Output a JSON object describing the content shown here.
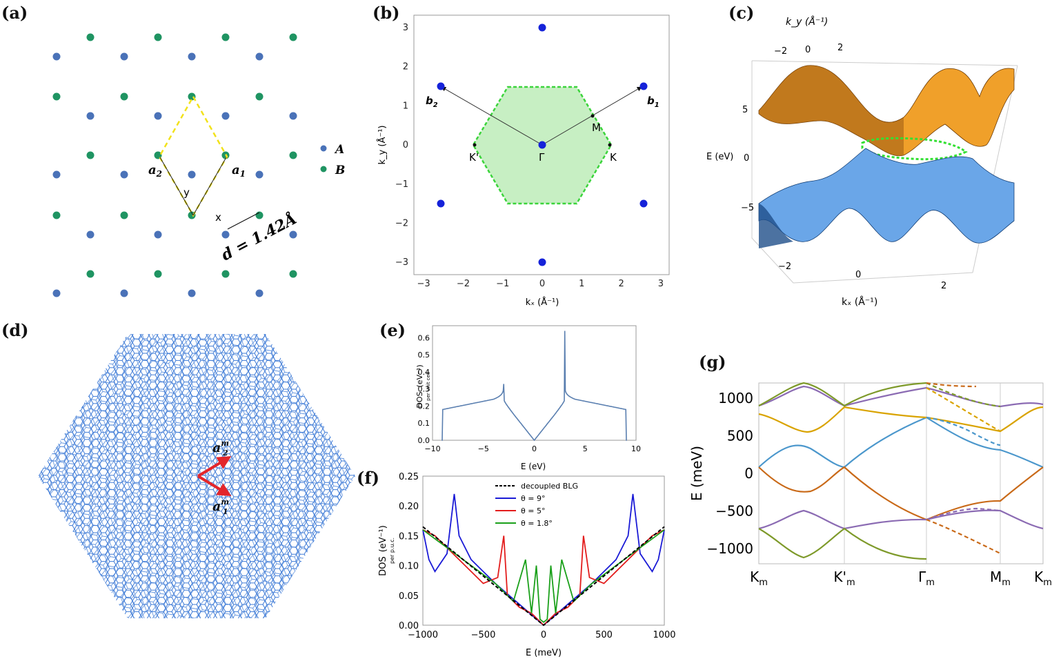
{
  "panels": {
    "a": {
      "label": "(a)",
      "legend_A": "A",
      "legend_B": "B",
      "a1": "a",
      "a1_sub": "1",
      "a2": "a",
      "a2_sub": "2",
      "x_axis": "x",
      "y_axis": "y",
      "bond": "d = 1.42Å",
      "colors": {
        "A": "#4a72b8",
        "B": "#1f9462",
        "cell": "#f2e21b"
      }
    },
    "b": {
      "label": "(b)",
      "xlabel": "kₓ (Å⁻¹)",
      "ylabel": "k_y (Å⁻¹)",
      "xticks": [
        "−3",
        "−2",
        "−1",
        "0",
        "1",
        "2",
        "3"
      ],
      "yticks": [
        "3",
        "2",
        "1",
        "0",
        "−1",
        "−2",
        "−3"
      ],
      "points": {
        "gamma": "Γ",
        "K": "K",
        "Kp": "K'",
        "M": "M",
        "b1": "b",
        "b1_sub": "1",
        "b2": "b",
        "b2_sub": "2"
      },
      "colors": {
        "bz_fill": "#c7efc3",
        "bz_edge": "#3bd43b",
        "dot": "#1522d9"
      }
    },
    "c": {
      "label": "(c)",
      "ky_label": "k_y (Å⁻¹)",
      "ky_ticks": [
        "−2",
        "0",
        "2"
      ],
      "kx_label": "kₓ (Å⁻¹)",
      "kx_ticks": [
        "−2",
        "0",
        "2"
      ],
      "e_label": "E (eV)",
      "e_ticks": [
        "5",
        "0",
        "−5"
      ],
      "colors": {
        "upper": "#f0a02a",
        "lower": "#6aa6e8",
        "bz": "#33e033"
      }
    },
    "d": {
      "label": "(d)",
      "am2": "a",
      "am2_sup": "m",
      "am2_sub": "2",
      "am1": "a",
      "am1_sup": "m",
      "am1_sub": "1",
      "colors": {
        "lattice": "#3d7ad6",
        "vector": "#e3262b"
      }
    },
    "e": {
      "label": "(e)",
      "xlabel": "E (eV)",
      "ylabel": "DOS",
      "ylabel_sub": "per unit cell",
      "yunit": "(eV⁻¹)",
      "xticks": [
        "−10",
        "−5",
        "0",
        "5",
        "10"
      ],
      "yticks": [
        "0.6",
        "0.5",
        "0.4",
        "0.3",
        "0.2",
        "0.1",
        "0.0"
      ]
    },
    "f": {
      "label": "(f)",
      "xlabel": "E (meV)",
      "ylabel": "DOS",
      "ylabel_sub": "per p.u.c.",
      "yunit": "(eV⁻¹)",
      "xticks": [
        "−1000",
        "−500",
        "0",
        "500",
        "1000"
      ],
      "yticks": [
        "0.25",
        "0.20",
        "0.15",
        "0.10",
        "0.05",
        "0.00"
      ],
      "legend": [
        "decoupled BLG",
        "θ = 9°",
        "θ = 5°",
        "θ = 1.8°"
      ],
      "colors": [
        "#000000",
        "#1a1ad6",
        "#e31c1c",
        "#1aa01a"
      ]
    },
    "g": {
      "label": "(g)",
      "ylabel": "E (meV)",
      "yticks": [
        "1000",
        "500",
        "0",
        "−500",
        "−1000"
      ],
      "xticks": [
        "K",
        "K'",
        "Γ",
        "M",
        "K"
      ],
      "xsub": "m",
      "colors": [
        "#d9a300",
        "#8b6bb3",
        "#7e9a2a",
        "#c96a19",
        "#4b97cc",
        "#e0533c"
      ]
    }
  },
  "chart_data": [
    {
      "type": "line",
      "panel": "e",
      "xlabel": "E (eV)",
      "ylabel": "DOS per unit cell (eV⁻¹)",
      "xlim": [
        -10,
        10
      ],
      "ylim": [
        0,
        0.65
      ],
      "x": [
        -9.1,
        -9.0,
        -8.5,
        -7,
        -5,
        -4,
        -3.3,
        -3.0,
        -2.7,
        -2,
        -1,
        0,
        1,
        2,
        2.7,
        3.0,
        3.3,
        4,
        5,
        7,
        8.5,
        9.0,
        9.1
      ],
      "y": [
        0.0,
        0.18,
        0.19,
        0.21,
        0.25,
        0.3,
        0.4,
        0.65,
        0.4,
        0.22,
        0.1,
        0.0,
        0.1,
        0.22,
        0.4,
        0.65,
        0.4,
        0.3,
        0.25,
        0.21,
        0.19,
        0.18,
        0.0
      ]
    },
    {
      "type": "line",
      "panel": "f",
      "xlabel": "E (meV)",
      "ylabel": "DOS per p.u.c. (eV⁻¹)",
      "xlim": [
        -1000,
        1000
      ],
      "ylim": [
        0,
        0.25
      ],
      "series": [
        {
          "name": "decoupled BLG",
          "x": [
            -1000,
            0,
            1000
          ],
          "y": [
            0.165,
            0.0,
            0.165
          ]
        },
        {
          "name": "θ = 9°",
          "x": [
            -1000,
            -950,
            -900,
            -800,
            -740,
            -700,
            -600,
            -400,
            -200,
            0,
            200,
            400,
            600,
            700,
            740,
            800,
            900,
            950,
            1000
          ],
          "y": [
            0.16,
            0.11,
            0.09,
            0.12,
            0.22,
            0.15,
            0.11,
            0.07,
            0.035,
            0.0,
            0.035,
            0.07,
            0.11,
            0.15,
            0.22,
            0.12,
            0.09,
            0.11,
            0.16
          ]
        },
        {
          "name": "θ = 5°",
          "x": [
            -1000,
            -900,
            -800,
            -700,
            -500,
            -380,
            -330,
            -300,
            -200,
            -100,
            0,
            100,
            200,
            300,
            330,
            380,
            500,
            700,
            800,
            900,
            1000
          ],
          "y": [
            0.16,
            0.15,
            0.13,
            0.11,
            0.07,
            0.08,
            0.15,
            0.05,
            0.03,
            0.02,
            0.0,
            0.02,
            0.03,
            0.05,
            0.15,
            0.08,
            0.07,
            0.11,
            0.13,
            0.15,
            0.16
          ]
        },
        {
          "name": "θ = 1.8°",
          "x": [
            -1000,
            -800,
            -600,
            -400,
            -250,
            -150,
            -100,
            -60,
            -30,
            0,
            30,
            60,
            100,
            150,
            250,
            400,
            600,
            800,
            1000
          ],
          "y": [
            0.16,
            0.13,
            0.1,
            0.07,
            0.04,
            0.11,
            0.02,
            0.1,
            0.01,
            0.005,
            0.01,
            0.1,
            0.02,
            0.11,
            0.04,
            0.07,
            0.1,
            0.13,
            0.16
          ]
        }
      ]
    },
    {
      "type": "line",
      "panel": "g",
      "ylabel": "E (meV)",
      "categories": [
        "Km",
        "K'm",
        "Γm",
        "Mm",
        "Km"
      ],
      "ylim": [
        -1200,
        1200
      ]
    }
  ]
}
